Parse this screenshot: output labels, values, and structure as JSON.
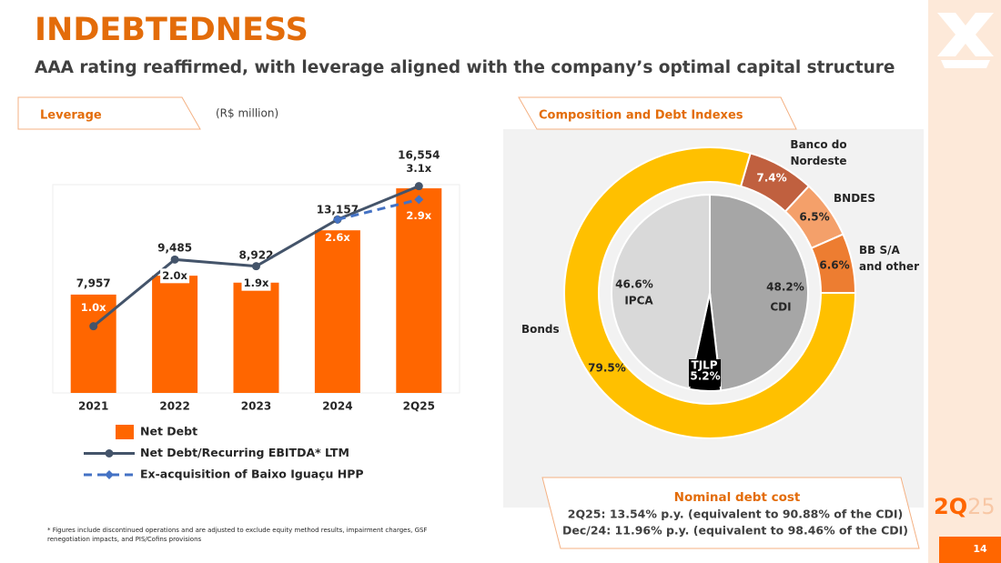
{
  "header": {
    "title": "INDEBTEDNESS",
    "subtitle": "AAA rating reaffirmed, with leverage aligned with the company’s optimal capital structure"
  },
  "chart_data": [
    {
      "type": "bar",
      "title": "Leverage",
      "subtitle": "(R$ million)",
      "categories": [
        "2021",
        "2022",
        "2023",
        "2024",
        "2Q25"
      ],
      "series": [
        {
          "name": "Net Debt",
          "type": "bar",
          "color": "#ff6600",
          "values": [
            7957,
            9485,
            8922,
            13157,
            16554
          ],
          "value_labels": [
            "7,957",
            "9,485",
            "8,922",
            "13,157",
            "16,554"
          ]
        },
        {
          "name": "Net Debt/Recurring EBITDA* LTM",
          "type": "line",
          "axis": "y2",
          "color": "#44546a",
          "marker": "circle",
          "values": [
            1.0,
            2.0,
            1.9,
            2.6,
            3.1
          ],
          "value_labels": [
            "1.0x",
            "2.0x",
            "1.9x",
            "2.6x",
            "3.1x"
          ]
        },
        {
          "name": "Ex-acquisition of Baixo Iguaçu HPP",
          "type": "line",
          "axis": "y2",
          "color": "#4472c4",
          "marker": "diamond",
          "dashed": true,
          "values": [
            null,
            null,
            null,
            2.6,
            2.9
          ],
          "value_labels": [
            null,
            null,
            null,
            null,
            "2.9x"
          ]
        }
      ],
      "ylim": [
        0,
        17000
      ],
      "y2lim": [
        0,
        3.15
      ]
    },
    {
      "type": "donut",
      "title": "Composition and Debt Indexes",
      "outer": {
        "categories": [
          "Banco do Nordeste",
          "BNDES",
          "BB S/A and other",
          "Bonds"
        ],
        "values": [
          7.4,
          6.5,
          6.6,
          79.5
        ],
        "value_labels": [
          "7.4%",
          "6.5%",
          "6.6%",
          "79.5%"
        ],
        "colors": [
          "#c0603f",
          "#f4a06a",
          "#ed7d31",
          "#ffc000"
        ]
      },
      "inner": {
        "categories": [
          "CDI",
          "TJLP",
          "IPCA"
        ],
        "values": [
          48.2,
          5.2,
          46.6
        ],
        "value_labels": [
          "48.2%",
          "5.2%",
          "46.6%"
        ],
        "colors": [
          "#a6a6a6",
          "#000000",
          "#d9d9d9"
        ]
      }
    }
  ],
  "nominal_debt_cost": {
    "title": "Nominal debt cost",
    "lines": [
      "2Q25: 13.54% p.y. (equivalent to 90.88% of the CDI)",
      "Dec/24: 11.96% p.y. (equivalent to 98.46% of the CDI)"
    ]
  },
  "footnote": "* Figures include discontinued operations and are adjusted to exclude equity method results, impairment charges, GSF renegotiation impacts, and PIS/Cofins provisions",
  "badge": {
    "main": "2Q",
    "suffix": "25"
  },
  "page_number": "14"
}
